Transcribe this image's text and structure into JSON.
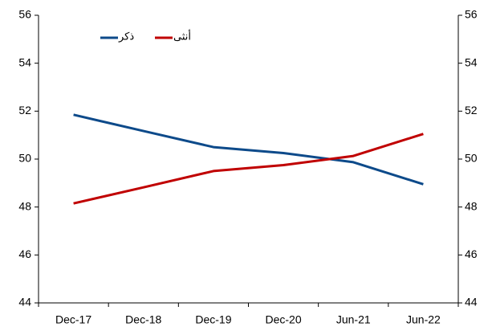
{
  "chart_data": {
    "type": "line",
    "categories": [
      "Dec-17",
      "Dec-18",
      "Dec-19",
      "Dec-20",
      "Jun-21",
      "Jun-22"
    ],
    "series": [
      {
        "name": "ذكر",
        "color": "#0d4a8a",
        "values": [
          51.85,
          51.17,
          50.5,
          50.25,
          49.87,
          48.95
        ]
      },
      {
        "name": "أنثى",
        "color": "#c00000",
        "values": [
          48.15,
          48.82,
          49.5,
          49.75,
          50.13,
          51.05
        ]
      }
    ],
    "ylim": [
      44,
      56
    ],
    "yticks": [
      44,
      46,
      48,
      50,
      52,
      54,
      56
    ],
    "y2lim": [
      44,
      56
    ],
    "y2ticks": [
      44,
      46,
      48,
      50,
      52,
      54,
      56
    ],
    "legend": "top-left"
  }
}
